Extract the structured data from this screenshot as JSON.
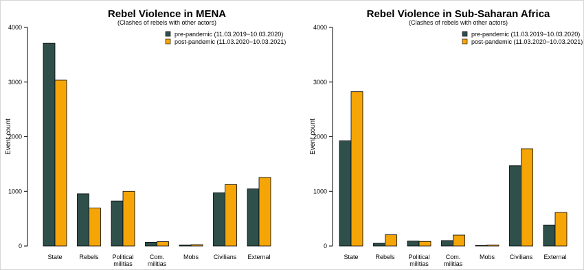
{
  "chart_data": [
    {
      "type": "bar",
      "title": "Rebel Violence in MENA",
      "subtitle": "(Clashes of rebels with other actors)",
      "xlabel": "",
      "ylabel": "Event count",
      "ylim": [
        0,
        4000
      ],
      "yticks": [
        "0",
        "1000",
        "2000",
        "3000",
        "4000"
      ],
      "categories": [
        [
          "State"
        ],
        [
          "Rebels"
        ],
        [
          "Political",
          "militias"
        ],
        [
          "Com.",
          "militias"
        ],
        [
          "Mobs"
        ],
        [
          "Civilians"
        ],
        [
          "External"
        ]
      ],
      "series": [
        {
          "name": "pre-pandemic (11.03.2019−10.03.2020)",
          "color": "#2f4f4a",
          "values": [
            3710,
            955,
            825,
            70,
            20,
            975,
            1045
          ]
        },
        {
          "name": "post-pandemic (11.03.2020−10.03.2021)",
          "color": "#f5a506",
          "values": [
            3035,
            695,
            1000,
            80,
            25,
            1125,
            1255
          ]
        }
      ],
      "legend": "top-right",
      "grid": false
    },
    {
      "type": "bar",
      "title": "Rebel Violence in Sub-Saharan Africa",
      "subtitle": "(Clashes of rebels with other actors)",
      "xlabel": "",
      "ylabel": "Event count",
      "ylim": [
        0,
        4000
      ],
      "yticks": [
        "0",
        "1000",
        "2000",
        "3000",
        "4000"
      ],
      "categories": [
        [
          "State"
        ],
        [
          "Rebels"
        ],
        [
          "Political",
          "militias"
        ],
        [
          "Com.",
          "militias"
        ],
        [
          "Mobs"
        ],
        [
          "Civilians"
        ],
        [
          "External"
        ]
      ],
      "series": [
        {
          "name": "pre-pandemic (11.03.2019−10.03.2020)",
          "color": "#2f4f4a",
          "values": [
            1925,
            50,
            90,
            100,
            10,
            1470,
            385
          ]
        },
        {
          "name": "post-pandemic (11.03.2020−10.03.2021)",
          "color": "#f5a506",
          "values": [
            2825,
            205,
            85,
            200,
            20,
            1780,
            615
          ]
        }
      ],
      "legend": "top-right",
      "grid": false
    }
  ]
}
